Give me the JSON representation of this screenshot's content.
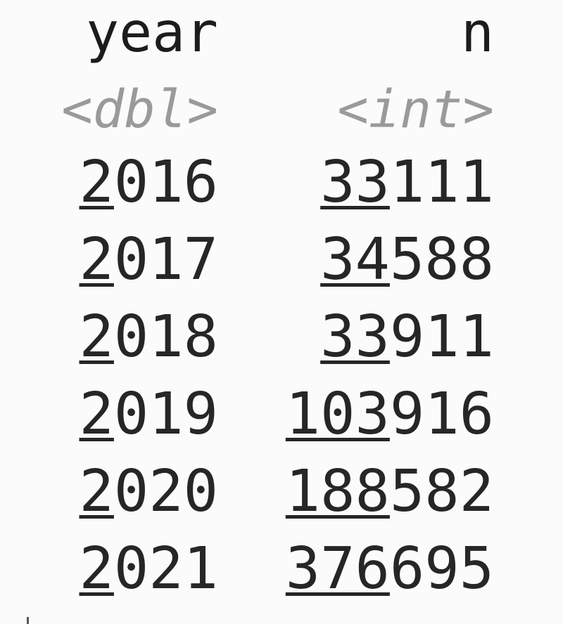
{
  "columns": [
    {
      "name": "year",
      "type": "<dbl>"
    },
    {
      "name": "n",
      "type": "<int>"
    }
  ],
  "rows": [
    {
      "year": {
        "hi": "2",
        "lo": "016"
      },
      "n": {
        "hi": "33",
        "lo": "111"
      }
    },
    {
      "year": {
        "hi": "2",
        "lo": "017"
      },
      "n": {
        "hi": "34",
        "lo": "588"
      }
    },
    {
      "year": {
        "hi": "2",
        "lo": "018"
      },
      "n": {
        "hi": "33",
        "lo": "911"
      }
    },
    {
      "year": {
        "hi": "2",
        "lo": "019"
      },
      "n": {
        "hi": "103",
        "lo": "916"
      }
    },
    {
      "year": {
        "hi": "2",
        "lo": "020"
      },
      "n": {
        "hi": "188",
        "lo": "582"
      }
    },
    {
      "year": {
        "hi": "2",
        "lo": "021"
      },
      "n": {
        "hi": "376",
        "lo": "695"
      }
    }
  ]
}
